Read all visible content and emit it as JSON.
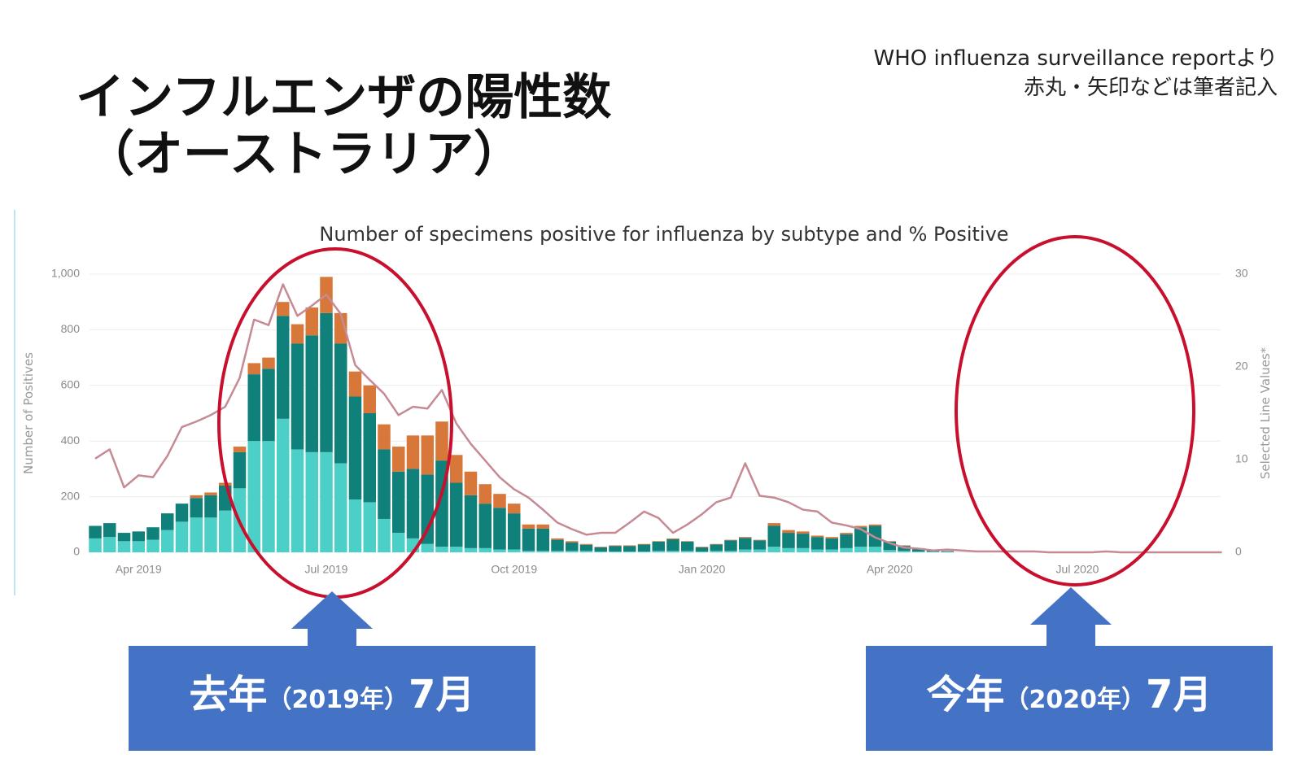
{
  "slide": {
    "title": [
      "インフルエンザの陽性数",
      "（オーストラリア）"
    ],
    "source": [
      "WHO influenza surveillance reportより",
      "赤丸・矢印などは筆者記入"
    ],
    "callouts": [
      {
        "parts": [
          "去年",
          "（2019年）",
          "7月"
        ]
      },
      {
        "parts": [
          "今年",
          "（2020年）",
          "7月"
        ]
      }
    ]
  },
  "chart_data": {
    "type": "bar",
    "stacked": true,
    "title": "Number of specimens positive for influenza by subtype and % Positive",
    "y_label": "Number of Positives",
    "y2_label": "Selected Line Values*",
    "categories": [
      null,
      null,
      null,
      "Apr 2019",
      null,
      null,
      null,
      null,
      null,
      null,
      null,
      null,
      null,
      null,
      null,
      null,
      "Jul 2019",
      null,
      null,
      null,
      null,
      null,
      null,
      null,
      null,
      null,
      null,
      null,
      null,
      "Oct 2019",
      null,
      null,
      null,
      null,
      null,
      null,
      null,
      null,
      null,
      null,
      null,
      null,
      "Jan 2020",
      null,
      null,
      null,
      null,
      null,
      null,
      null,
      null,
      null,
      null,
      null,
      null,
      "Apr 2020",
      null,
      null,
      null,
      null,
      null,
      null,
      null,
      null,
      null,
      null,
      null,
      null,
      "Jul 2020",
      null,
      null,
      null,
      null,
      null,
      null,
      null,
      null,
      null,
      null
    ],
    "ylim": [
      0,
      1000
    ],
    "yticks": [
      0,
      200,
      400,
      600,
      800,
      {
        "value": 1000,
        "label": "1,000"
      }
    ],
    "y2lim": [
      0,
      30
    ],
    "y2ticks": [
      0,
      10,
      20,
      30
    ],
    "grid": true,
    "series": [
      {
        "color": "#4ccfc6",
        "values": [
          50,
          55,
          40,
          40,
          45,
          80,
          110,
          125,
          125,
          150,
          230,
          400,
          400,
          480,
          370,
          360,
          360,
          320,
          190,
          180,
          120,
          70,
          50,
          30,
          20,
          20,
          15,
          15,
          10,
          10,
          5,
          5,
          5,
          5,
          5,
          3,
          3,
          3,
          3,
          5,
          5,
          5,
          3,
          5,
          5,
          10,
          10,
          20,
          15,
          15,
          10,
          10,
          15,
          20,
          20,
          8,
          5,
          3,
          2,
          1,
          0,
          0,
          0,
          0,
          0,
          0,
          0,
          0,
          0,
          0,
          0,
          0,
          0,
          0,
          0,
          0,
          0,
          0,
          0
        ]
      },
      {
        "color": "#10807b",
        "values": [
          45,
          50,
          30,
          35,
          45,
          60,
          65,
          70,
          80,
          90,
          130,
          240,
          260,
          370,
          380,
          420,
          500,
          430,
          370,
          320,
          250,
          220,
          250,
          250,
          310,
          230,
          190,
          160,
          150,
          130,
          80,
          80,
          40,
          30,
          22,
          15,
          20,
          20,
          25,
          33,
          42,
          33,
          15,
          23,
          38,
          42,
          33,
          75,
          55,
          52,
          45,
          40,
          50,
          70,
          75,
          30,
          18,
          11,
          5,
          3,
          0,
          0,
          0,
          0,
          0,
          0,
          0,
          0,
          0,
          0,
          0,
          0,
          0,
          0,
          0,
          0,
          0,
          0,
          0
        ]
      },
      {
        "color": "#d8773a",
        "values": [
          0,
          0,
          0,
          0,
          0,
          0,
          0,
          10,
          10,
          10,
          20,
          40,
          40,
          50,
          70,
          100,
          130,
          110,
          90,
          100,
          90,
          90,
          120,
          140,
          140,
          100,
          85,
          70,
          50,
          35,
          15,
          15,
          5,
          5,
          3,
          2,
          2,
          2,
          2,
          2,
          3,
          2,
          2,
          2,
          2,
          3,
          2,
          10,
          10,
          8,
          5,
          5,
          5,
          5,
          5,
          2,
          2,
          1,
          1,
          0,
          0,
          0,
          0,
          0,
          0,
          0,
          0,
          0,
          0,
          0,
          0,
          0,
          0,
          0,
          0,
          0,
          0,
          0,
          0
        ]
      },
      {
        "type": "line",
        "axis": "y2",
        "color": "#c58a94",
        "values": [
          10.1,
          11.1,
          7,
          8.3,
          8.1,
          10.4,
          13.5,
          14.1,
          14.8,
          15.7,
          18.8,
          25.1,
          24.5,
          28.9,
          25.5,
          26.6,
          27.8,
          25.7,
          20.2,
          18.6,
          17.1,
          14.8,
          15.7,
          15.5,
          17.5,
          13.9,
          11.7,
          9.9,
          8.1,
          6.8,
          5.9,
          4.6,
          3.2,
          2.5,
          1.9,
          2.1,
          2.1,
          3.2,
          4.4,
          3.7,
          2.1,
          3,
          4.1,
          5.4,
          5.9,
          9.6,
          6.1,
          5.9,
          5.4,
          4.6,
          4.4,
          3.2,
          2.9,
          2.5,
          1.6,
          1,
          0.5,
          0.4,
          0.2,
          0.3,
          0.2,
          0.1,
          0.1,
          0.1,
          0.1,
          0.1,
          0,
          0,
          0,
          0,
          0.1,
          0,
          0,
          0,
          0,
          0,
          0,
          0,
          0
        ]
      }
    ]
  }
}
